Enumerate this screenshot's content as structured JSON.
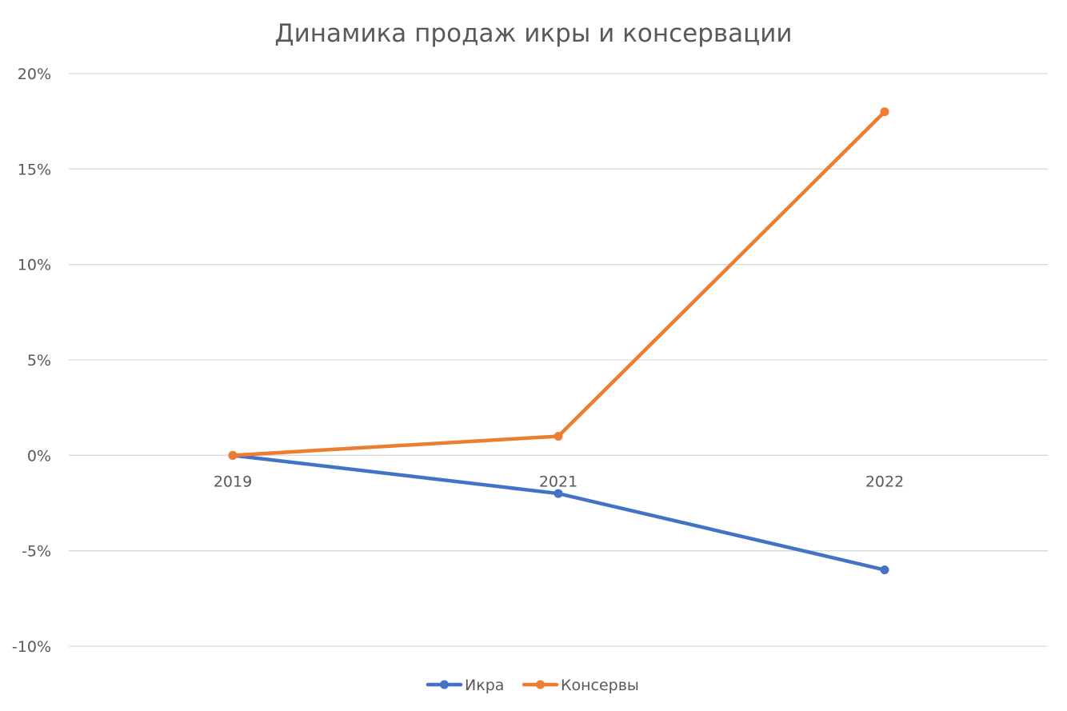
{
  "chart_data": {
    "type": "line",
    "title": "Динамика продаж икры и консервации",
    "xlabel": "",
    "ylabel": "",
    "categories": [
      "2019",
      "2021",
      "2022"
    ],
    "series": [
      {
        "name": "Икра",
        "values": [
          0,
          -2,
          -6
        ],
        "color": "#4472c4"
      },
      {
        "name": "Консервы",
        "values": [
          0,
          1,
          18
        ],
        "color": "#ed7d31"
      }
    ],
    "ylim": [
      -10,
      20
    ],
    "yticks": [
      20,
      15,
      10,
      5,
      0,
      -5,
      -10
    ],
    "ytick_labels": [
      "20%",
      "15%",
      "10%",
      "5%",
      "0%",
      "-5%",
      "-10%"
    ],
    "value_unit": "%",
    "grid": true,
    "legend": "bottom",
    "markers": true
  }
}
